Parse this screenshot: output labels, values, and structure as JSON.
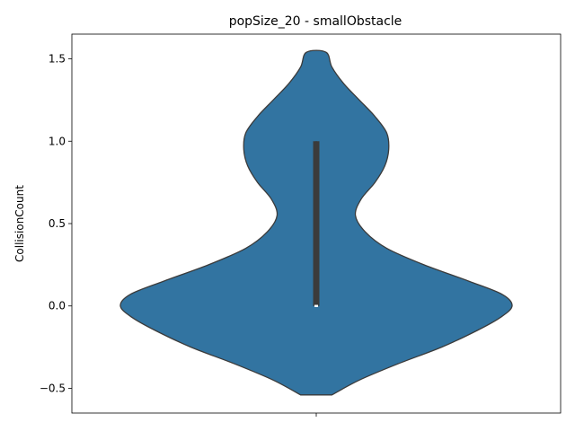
{
  "chart_data": {
    "type": "violin",
    "title": "popSize_20 - smallObstacle",
    "xlabel": "",
    "ylabel": "CollisionCount",
    "ylim": [
      -0.65,
      1.65
    ],
    "yticks": [
      -0.5,
      0.0,
      0.5,
      1.0,
      1.5
    ],
    "ytick_labels": [
      "−0.5",
      "0.0",
      "0.5",
      "1.0",
      "1.5"
    ],
    "categories": [
      ""
    ],
    "violin": {
      "color": "#3274a1",
      "edge_color": "#3b3b3b",
      "y_range": [
        -0.54,
        1.54
      ],
      "density_profile": [
        {
          "y": -0.54,
          "w": 0.08
        },
        {
          "y": -0.45,
          "w": 0.22
        },
        {
          "y": -0.35,
          "w": 0.42
        },
        {
          "y": -0.25,
          "w": 0.64
        },
        {
          "y": -0.15,
          "w": 0.82
        },
        {
          "y": -0.07,
          "w": 0.94
        },
        {
          "y": 0.0,
          "w": 1.0
        },
        {
          "y": 0.07,
          "w": 0.95
        },
        {
          "y": 0.15,
          "w": 0.78
        },
        {
          "y": 0.25,
          "w": 0.55
        },
        {
          "y": 0.35,
          "w": 0.36
        },
        {
          "y": 0.45,
          "w": 0.25
        },
        {
          "y": 0.55,
          "w": 0.2
        },
        {
          "y": 0.65,
          "w": 0.23
        },
        {
          "y": 0.75,
          "w": 0.3
        },
        {
          "y": 0.85,
          "w": 0.35
        },
        {
          "y": 0.95,
          "w": 0.37
        },
        {
          "y": 1.05,
          "w": 0.36
        },
        {
          "y": 1.15,
          "w": 0.3
        },
        {
          "y": 1.25,
          "w": 0.22
        },
        {
          "y": 1.35,
          "w": 0.14
        },
        {
          "y": 1.45,
          "w": 0.08
        },
        {
          "y": 1.54,
          "w": 0.05
        }
      ],
      "box": {
        "q1": 0.0,
        "median": 0.0,
        "q3": 1.0,
        "whisker_low": 0.0,
        "whisker_high": 1.0
      }
    }
  }
}
